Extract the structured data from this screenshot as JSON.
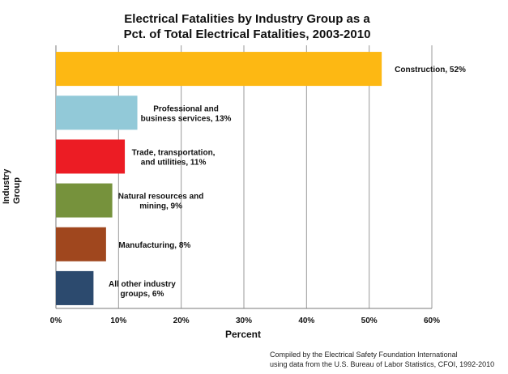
{
  "chart_data": {
    "type": "bar",
    "orientation": "horizontal",
    "title_line1": "Electrical Fatalities by Industry Group as a",
    "title_line2": "Pct. of Total Electrical Fatalities, 2003-2010",
    "xlabel": "Percent",
    "ylabel_line1": "Industry",
    "ylabel_line2": "Group",
    "xlim": [
      0,
      60
    ],
    "xticks": [
      "0%",
      "10%",
      "20%",
      "30%",
      "40%",
      "50%",
      "60%"
    ],
    "grid": true,
    "categories": [
      {
        "label_lines": [
          "Construction, 52%"
        ],
        "value": 52,
        "color": "#FDB813"
      },
      {
        "label_lines": [
          "Professional and",
          "business services, 13%"
        ],
        "value": 13,
        "color": "#92C9D8"
      },
      {
        "label_lines": [
          "Trade, transportation,",
          "and utilities, 11%"
        ],
        "value": 11,
        "color": "#EC1C24"
      },
      {
        "label_lines": [
          "Natural resources and",
          "mining, 9%"
        ],
        "value": 9,
        "color": "#76923C"
      },
      {
        "label_lines": [
          "Manufacturing, 8%"
        ],
        "value": 8,
        "color": "#A0471E"
      },
      {
        "label_lines": [
          "All other industry",
          "groups, 6%"
        ],
        "value": 6,
        "color": "#2C4A6E"
      }
    ],
    "credit_line1": "Compiled by the Electrical Safety Foundation International",
    "credit_line2": "using data from the U.S. Bureau of Labor Statistics, CFOI, 1992-2010"
  }
}
